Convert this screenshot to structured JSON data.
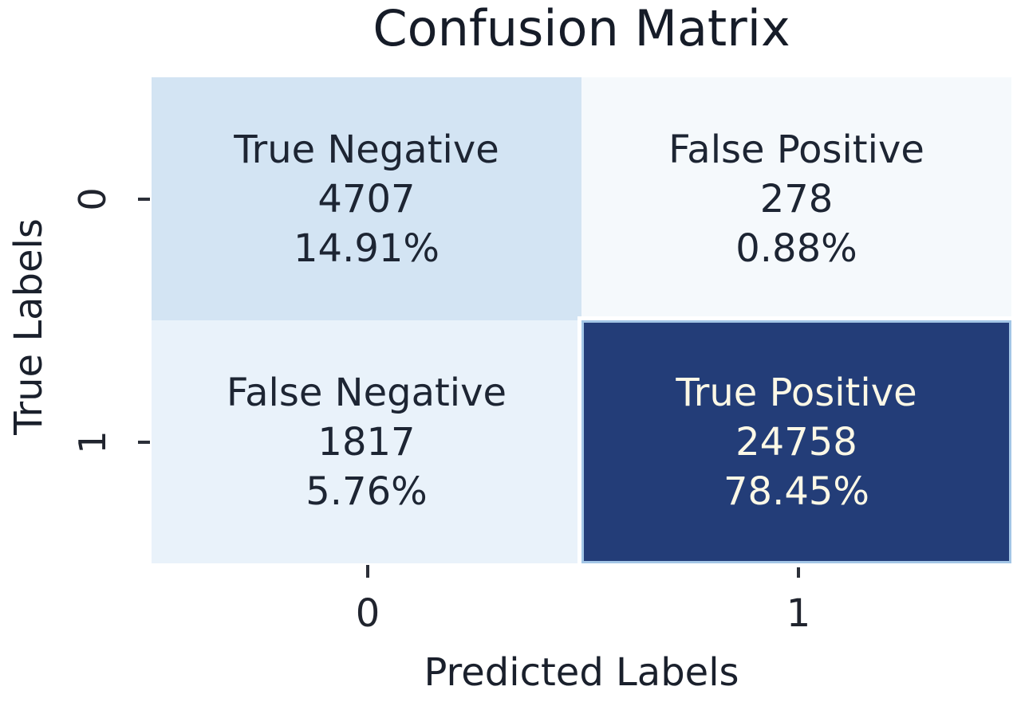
{
  "figure": {
    "background": "#ffffff",
    "title_color": "#161c28",
    "axis_text_color": "#1a202c"
  },
  "chart_data": {
    "type": "heatmap",
    "title": "Confusion Matrix",
    "xlabel": "Predicted Labels",
    "ylabel": "True Labels",
    "x_tick_labels": [
      "0",
      "1"
    ],
    "y_tick_labels": [
      "0",
      "1"
    ],
    "rows": 2,
    "cols": 2,
    "grid": false,
    "legend": "none",
    "cells": [
      {
        "row": 0,
        "col": 0,
        "name": "True Negative",
        "count": 4707,
        "percent": "14.91%",
        "bg": "#d3e4f3",
        "text_color": "#1d2533"
      },
      {
        "row": 0,
        "col": 1,
        "name": "False Positive",
        "count": 278,
        "percent": "0.88%",
        "bg": "#f5f9fc",
        "text_color": "#1d2533"
      },
      {
        "row": 1,
        "col": 0,
        "name": "False Negative",
        "count": 1817,
        "percent": "5.76%",
        "bg": "#e9f2fa",
        "text_color": "#1d2533"
      },
      {
        "row": 1,
        "col": 1,
        "name": "True Positive",
        "count": 24758,
        "percent": "78.45%",
        "bg": "#233d78",
        "text_color": "#fcf8e6"
      }
    ]
  }
}
